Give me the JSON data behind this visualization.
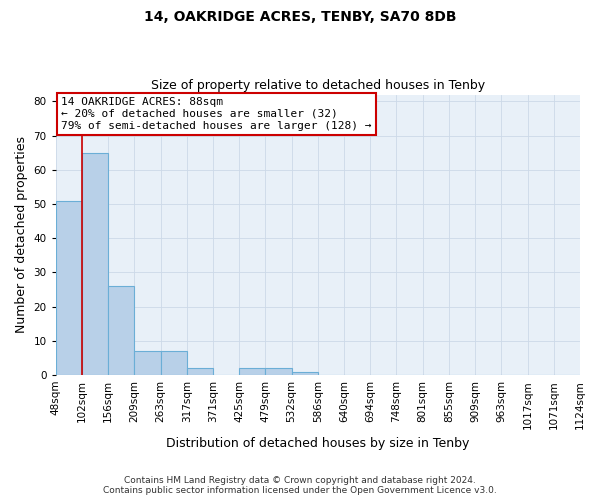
{
  "title": "14, OAKRIDGE ACRES, TENBY, SA70 8DB",
  "subtitle": "Size of property relative to detached houses in Tenby",
  "xlabel": "Distribution of detached houses by size in Tenby",
  "ylabel": "Number of detached properties",
  "bin_labels": [
    "48sqm",
    "102sqm",
    "156sqm",
    "209sqm",
    "263sqm",
    "317sqm",
    "371sqm",
    "425sqm",
    "479sqm",
    "532sqm",
    "586sqm",
    "640sqm",
    "694sqm",
    "748sqm",
    "801sqm",
    "855sqm",
    "909sqm",
    "963sqm",
    "1017sqm",
    "1071sqm",
    "1124sqm"
  ],
  "bar_values": [
    51,
    65,
    26,
    7,
    7,
    2,
    0,
    2,
    2,
    1,
    0,
    0,
    0,
    0,
    0,
    0,
    0,
    0,
    0,
    0
  ],
  "bar_color": "#b8d0e8",
  "bar_edge_color": "#6baed6",
  "property_line_x": 1,
  "property_line_color": "#cc0000",
  "annotation_line1": "14 OAKRIDGE ACRES: 88sqm",
  "annotation_line2": "← 20% of detached houses are smaller (32)",
  "annotation_line3": "79% of semi-detached houses are larger (128) →",
  "annotation_box_color": "#cc0000",
  "ylim": [
    0,
    82
  ],
  "yticks": [
    0,
    10,
    20,
    30,
    40,
    50,
    60,
    70,
    80
  ],
  "footer_line1": "Contains HM Land Registry data © Crown copyright and database right 2024.",
  "footer_line2": "Contains public sector information licensed under the Open Government Licence v3.0.",
  "grid_color": "#ccd9e8",
  "bg_color": "#e8f0f8",
  "title_fontsize": 10,
  "subtitle_fontsize": 9,
  "xlabel_fontsize": 9,
  "ylabel_fontsize": 9,
  "tick_fontsize": 7.5,
  "footer_fontsize": 6.5
}
